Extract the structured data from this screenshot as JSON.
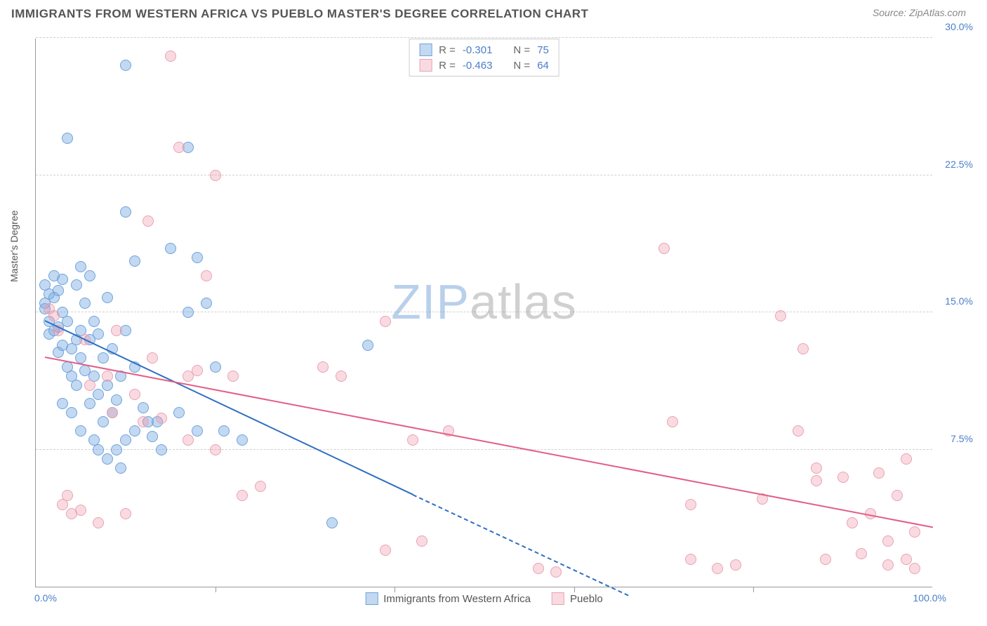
{
  "title": "IMMIGRANTS FROM WESTERN AFRICA VS PUEBLO MASTER'S DEGREE CORRELATION CHART",
  "source_prefix": "Source: ",
  "source": "ZipAtlas.com",
  "watermark_zip": "ZIP",
  "watermark_atlas": "atlas",
  "chart": {
    "type": "scatter",
    "xlim": [
      0,
      100
    ],
    "ylim": [
      0,
      30
    ],
    "ytick_step": 7.5,
    "xtick_step": 20,
    "x_min_label": "0.0%",
    "x_max_label": "100.0%",
    "y_ticks": [
      "7.5%",
      "15.0%",
      "22.5%",
      "30.0%"
    ],
    "ylabel": "Master's Degree",
    "background_color": "#ffffff",
    "grid_color": "#d0d0d0",
    "point_radius": 8,
    "series": [
      {
        "name": "Immigrants from Western Africa",
        "fill_color": "rgba(122,170,225,0.45)",
        "stroke_color": "#6ea3dd",
        "line_color": "#2f6fc1",
        "R": "-0.301",
        "N": "75",
        "regression": {
          "x1": 1,
          "y1": 14.5,
          "x2": 42,
          "y2": 5.0,
          "dash_to_x": 66,
          "dash_to_y": -0.5
        },
        "points": [
          [
            1,
            16.5
          ],
          [
            1,
            15.5
          ],
          [
            1,
            15.2
          ],
          [
            1.5,
            16.0
          ],
          [
            1.5,
            14.5
          ],
          [
            1.5,
            13.8
          ],
          [
            2,
            17.0
          ],
          [
            2,
            15.8
          ],
          [
            2,
            14.0
          ],
          [
            2.5,
            16.2
          ],
          [
            2.5,
            14.2
          ],
          [
            2.5,
            12.8
          ],
          [
            3,
            16.8
          ],
          [
            3,
            15.0
          ],
          [
            3,
            13.2
          ],
          [
            3,
            10.0
          ],
          [
            3.5,
            24.5
          ],
          [
            3.5,
            14.5
          ],
          [
            3.5,
            12.0
          ],
          [
            4,
            13.0
          ],
          [
            4,
            11.5
          ],
          [
            4,
            9.5
          ],
          [
            4.5,
            16.5
          ],
          [
            4.5,
            13.5
          ],
          [
            4.5,
            11.0
          ],
          [
            5,
            17.5
          ],
          [
            5,
            14.0
          ],
          [
            5,
            12.5
          ],
          [
            5,
            8.5
          ],
          [
            5.5,
            15.5
          ],
          [
            5.5,
            11.8
          ],
          [
            6,
            17.0
          ],
          [
            6,
            13.5
          ],
          [
            6,
            10.0
          ],
          [
            6.5,
            14.5
          ],
          [
            6.5,
            11.5
          ],
          [
            6.5,
            8.0
          ],
          [
            7,
            13.8
          ],
          [
            7,
            10.5
          ],
          [
            7,
            7.5
          ],
          [
            7.5,
            12.5
          ],
          [
            7.5,
            9.0
          ],
          [
            8,
            15.8
          ],
          [
            8,
            11.0
          ],
          [
            8,
            7.0
          ],
          [
            8.5,
            13.0
          ],
          [
            8.5,
            9.5
          ],
          [
            9,
            10.2
          ],
          [
            9,
            7.5
          ],
          [
            9.5,
            11.5
          ],
          [
            9.5,
            6.5
          ],
          [
            10,
            28.5
          ],
          [
            10,
            20.5
          ],
          [
            10,
            14.0
          ],
          [
            10,
            8.0
          ],
          [
            11,
            17.8
          ],
          [
            11,
            12.0
          ],
          [
            11,
            8.5
          ],
          [
            12,
            9.8
          ],
          [
            12.5,
            9.0
          ],
          [
            13,
            8.2
          ],
          [
            13.5,
            9.0
          ],
          [
            14,
            7.5
          ],
          [
            15,
            18.5
          ],
          [
            16,
            9.5
          ],
          [
            17,
            24.0
          ],
          [
            17,
            15.0
          ],
          [
            18,
            18.0
          ],
          [
            18,
            8.5
          ],
          [
            19,
            15.5
          ],
          [
            20,
            12.0
          ],
          [
            21,
            8.5
          ],
          [
            23,
            8.0
          ],
          [
            33,
            3.5
          ],
          [
            37,
            13.2
          ]
        ]
      },
      {
        "name": "Pueblo",
        "fill_color": "rgba(240,150,170,0.35)",
        "stroke_color": "#e8a3b5",
        "line_color": "#e35d85",
        "R": "-0.463",
        "N": "64",
        "regression": {
          "x1": 1,
          "y1": 12.5,
          "x2": 100,
          "y2": 3.2
        },
        "points": [
          [
            1.5,
            15.2
          ],
          [
            2,
            14.8
          ],
          [
            2.5,
            14.0
          ],
          [
            3,
            4.5
          ],
          [
            3.5,
            5.0
          ],
          [
            4,
            4.0
          ],
          [
            5,
            4.2
          ],
          [
            5.5,
            13.5
          ],
          [
            6,
            11.0
          ],
          [
            7,
            3.5
          ],
          [
            8,
            11.5
          ],
          [
            8.5,
            9.5
          ],
          [
            9,
            14.0
          ],
          [
            10,
            4.0
          ],
          [
            11,
            10.5
          ],
          [
            12,
            9.0
          ],
          [
            12.5,
            20.0
          ],
          [
            13,
            12.5
          ],
          [
            14,
            9.2
          ],
          [
            15,
            29.0
          ],
          [
            16,
            24.0
          ],
          [
            17,
            11.5
          ],
          [
            17,
            8.0
          ],
          [
            18,
            11.8
          ],
          [
            19,
            17.0
          ],
          [
            20,
            22.5
          ],
          [
            20,
            7.5
          ],
          [
            22,
            11.5
          ],
          [
            23,
            5.0
          ],
          [
            25,
            5.5
          ],
          [
            32,
            12.0
          ],
          [
            34,
            11.5
          ],
          [
            39,
            14.5
          ],
          [
            39,
            2.0
          ],
          [
            42,
            8.0
          ],
          [
            43,
            2.5
          ],
          [
            46,
            8.5
          ],
          [
            56,
            1.0
          ],
          [
            58,
            0.8
          ],
          [
            70,
            18.5
          ],
          [
            71,
            9.0
          ],
          [
            73,
            4.5
          ],
          [
            73,
            1.5
          ],
          [
            76,
            1.0
          ],
          [
            78,
            1.2
          ],
          [
            81,
            4.8
          ],
          [
            83,
            14.8
          ],
          [
            85,
            8.5
          ],
          [
            85.5,
            13.0
          ],
          [
            87,
            5.8
          ],
          [
            87,
            6.5
          ],
          [
            88,
            1.5
          ],
          [
            90,
            6.0
          ],
          [
            91,
            3.5
          ],
          [
            92,
            1.8
          ],
          [
            93,
            4.0
          ],
          [
            94,
            6.2
          ],
          [
            95,
            2.5
          ],
          [
            95,
            1.2
          ],
          [
            96,
            5.0
          ],
          [
            97,
            7.0
          ],
          [
            97,
            1.5
          ],
          [
            98,
            3.0
          ],
          [
            98,
            1.0
          ]
        ]
      }
    ]
  },
  "legend_labels": {
    "R": "R =",
    "N": "N ="
  }
}
